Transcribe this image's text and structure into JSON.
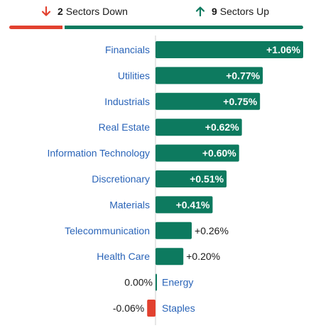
{
  "summary": {
    "down_count": "2",
    "down_label": "Sectors Down",
    "up_count": "9",
    "up_label": "Sectors Up"
  },
  "colors": {
    "up": "#0d7a5f",
    "down": "#e2412f",
    "label": "#2a64b8",
    "axis": "#cfcfcf"
  },
  "icons": {
    "down": "arrow-down-icon",
    "up": "arrow-up-icon"
  },
  "chart_data": {
    "type": "bar",
    "orientation": "horizontal",
    "categories": [
      "Financials",
      "Utilities",
      "Industrials",
      "Real Estate",
      "Information Technology",
      "Discretionary",
      "Materials",
      "Telecommunication",
      "Health Care",
      "Energy",
      "Staples"
    ],
    "values": [
      1.06,
      0.77,
      0.75,
      0.62,
      0.6,
      0.51,
      0.41,
      0.26,
      0.2,
      0.0,
      -0.06
    ],
    "labels": [
      "+1.06%",
      "+0.77%",
      "+0.75%",
      "+0.62%",
      "+0.60%",
      "+0.51%",
      "+0.41%",
      "+0.26%",
      "+0.20%",
      "0.00%",
      "-0.06%"
    ],
    "unit": "%"
  }
}
